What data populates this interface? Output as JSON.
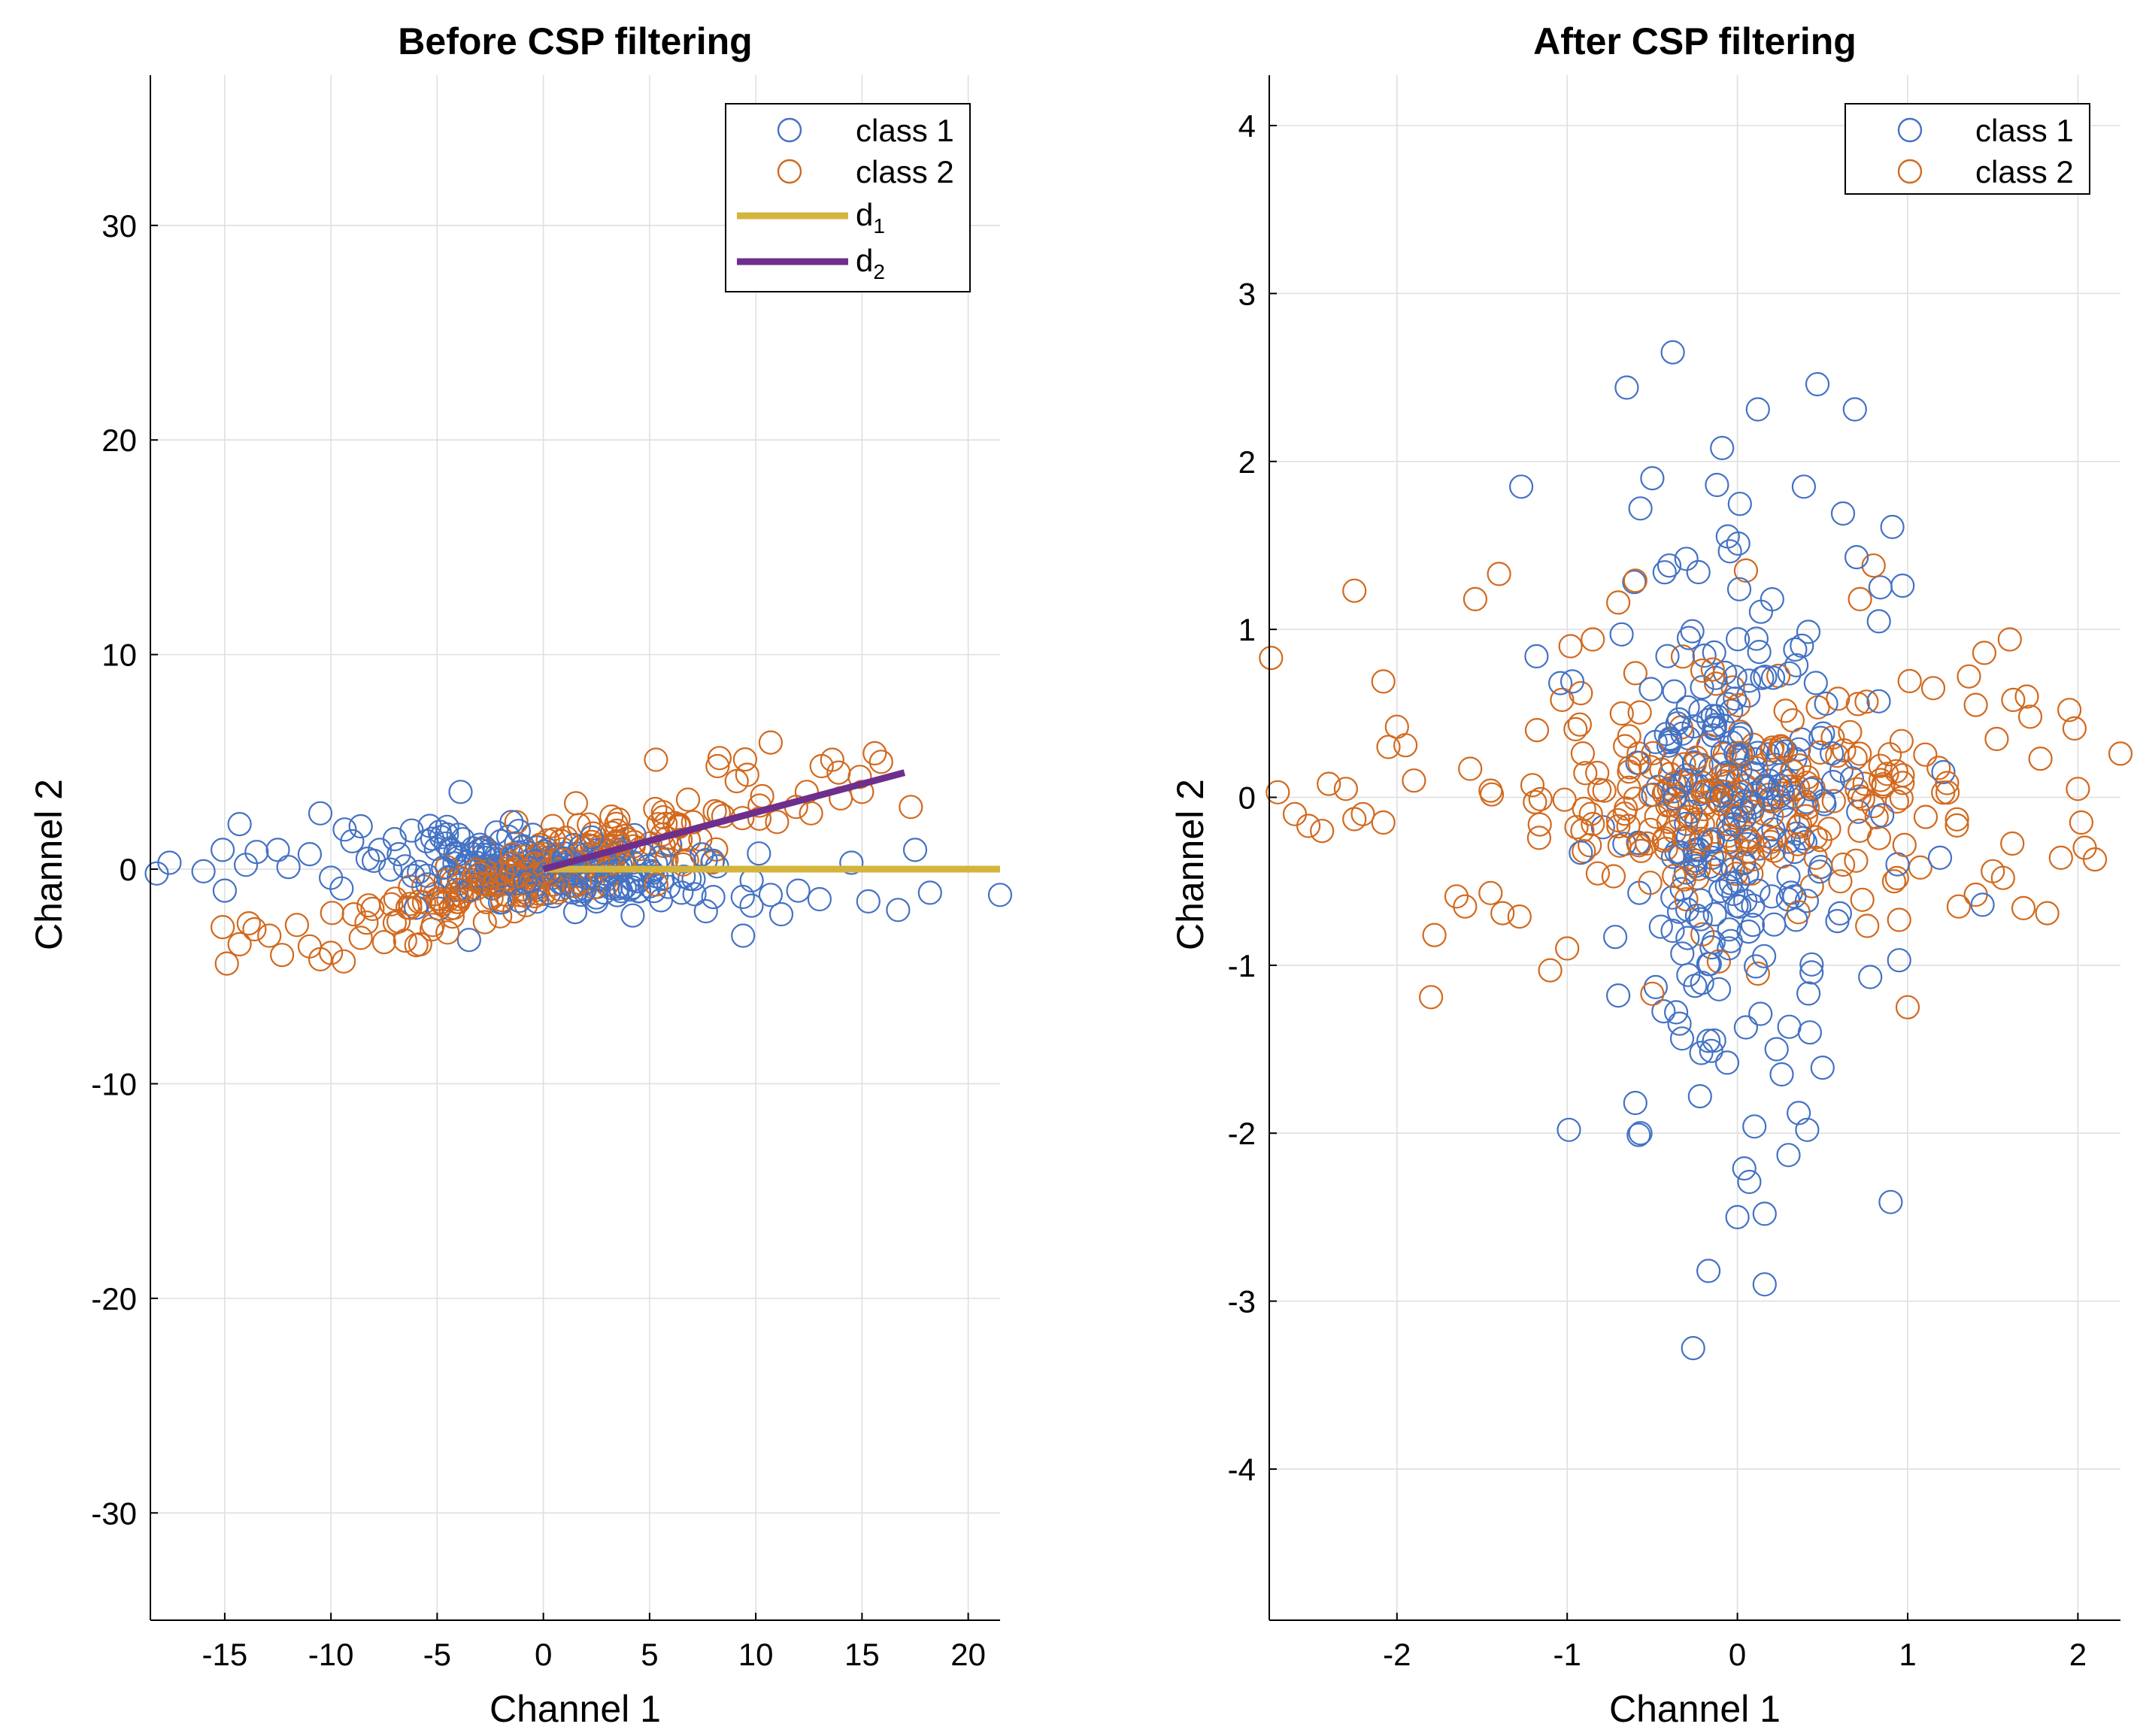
{
  "colors": {
    "class1": "#4472C4",
    "class2": "#D2691E",
    "d1": "#D4B43C",
    "d2": "#6E2F8C",
    "grid": "#DFDFDF",
    "axis": "#000000"
  },
  "chart_data": [
    {
      "type": "scatter",
      "title": "Before CSP filtering",
      "xlabel": "Channel 1",
      "ylabel": "Channel 2",
      "xlim": [
        -18.5,
        21.5
      ],
      "ylim": [
        -35,
        37
      ],
      "xticks": [
        -15,
        -10,
        -5,
        0,
        5,
        10,
        15,
        20
      ],
      "yticks": [
        -30,
        -20,
        -10,
        0,
        10,
        20,
        30
      ],
      "grid": true,
      "legend_position": "top-right",
      "seed": 11,
      "series": [
        {
          "name": "class 1",
          "marker": "circle-open",
          "color_key": "class1",
          "points": [
            [
              -18.2,
              -0.2
            ],
            [
              -17.6,
              0.3
            ],
            [
              -15.1,
              0.9
            ],
            [
              -15.0,
              -1.0
            ],
            [
              -14.3,
              2.1
            ],
            [
              -14.0,
              0.2
            ],
            [
              -13.5,
              0.8
            ],
            [
              -12.5,
              0.9
            ],
            [
              -12.0,
              0.1
            ],
            [
              -11.0,
              0.7
            ],
            [
              -10.5,
              2.6
            ],
            [
              -10.0,
              -0.4
            ],
            [
              -9.0,
              1.3
            ],
            [
              -8.6,
              2.0
            ],
            [
              -7.7,
              0.9
            ],
            [
              -7.0,
              1.4
            ],
            [
              -6.2,
              1.8
            ],
            [
              -5.5,
              1.3
            ],
            [
              -4.0,
              1.6
            ],
            [
              -3.9,
              3.6
            ],
            [
              -3.0,
              0.9
            ],
            [
              -2.0,
              1.3
            ],
            [
              -1.5,
              2.2
            ],
            [
              -0.5,
              1.6
            ],
            [
              0.2,
              0.5
            ],
            [
              1.0,
              0.2
            ],
            [
              2.0,
              -0.4
            ],
            [
              3.5,
              -0.9
            ],
            [
              5.0,
              -0.8
            ],
            [
              6.5,
              -1.1
            ],
            [
              8.0,
              -1.3
            ],
            [
              9.4,
              -3.1
            ],
            [
              9.8,
              -1.7
            ],
            [
              10.7,
              -1.2
            ],
            [
              11.2,
              -2.1
            ],
            [
              12.0,
              -1.0
            ],
            [
              13.0,
              -1.4
            ],
            [
              14.5,
              0.3
            ],
            [
              15.3,
              -1.5
            ],
            [
              16.7,
              -1.9
            ],
            [
              17.5,
              0.9
            ],
            [
              18.2,
              -1.1
            ],
            [
              21.5,
              -1.2
            ],
            [
              -16.0,
              -0.1
            ],
            [
              -6.0,
              -1.8
            ],
            [
              -3.5,
              -3.3
            ],
            [
              -9.5,
              -0.9
            ],
            [
              1.5,
              -2.0
            ]
          ],
          "cloud": {
            "count": 200,
            "x_sd": 3.5,
            "slope": -0.06,
            "y_sd": 0.75
          }
        },
        {
          "name": "class 2",
          "marker": "circle-open",
          "color_key": "class2",
          "points": [
            [
              -15.1,
              -2.7
            ],
            [
              -14.9,
              -4.4
            ],
            [
              -14.3,
              -3.5
            ],
            [
              -13.6,
              -2.8
            ],
            [
              -12.9,
              -3.1
            ],
            [
              -12.3,
              -4.0
            ],
            [
              -11.6,
              -2.6
            ],
            [
              -11.0,
              -3.6
            ],
            [
              -10.5,
              -4.2
            ],
            [
              -10.0,
              -3.9
            ],
            [
              -9.4,
              -4.3
            ],
            [
              -8.6,
              -3.2
            ],
            [
              -7.5,
              -3.4
            ],
            [
              -7.0,
              -2.5
            ],
            [
              -5.8,
              -3.5
            ],
            [
              -5.2,
              -2.6
            ],
            [
              -4.2,
              -1.8
            ],
            [
              5.3,
              5.1
            ],
            [
              10.7,
              5.9
            ],
            [
              9.1,
              4.1
            ],
            [
              8.2,
              4.8
            ],
            [
              13.1,
              4.8
            ],
            [
              13.6,
              5.1
            ],
            [
              13.9,
              4.5
            ],
            [
              14.9,
              4.3
            ],
            [
              15.6,
              5.4
            ],
            [
              15.9,
              5.0
            ],
            [
              17.3,
              2.9
            ],
            [
              12.4,
              3.6
            ],
            [
              11.9,
              2.9
            ],
            [
              10.3,
              3.4
            ],
            [
              9.6,
              4.4
            ],
            [
              11.0,
              2.2
            ],
            [
              12.6,
              2.6
            ],
            [
              14.0,
              3.3
            ],
            [
              15.0,
              3.6
            ]
          ],
          "cloud": {
            "count": 210,
            "x_sd": 4.0,
            "slope": 0.27,
            "y_sd": 0.85
          }
        },
        {
          "name": "d₁",
          "label_main": "d",
          "label_sub": "1",
          "marker": "line",
          "color_key": "d1",
          "x": [
            0,
            21.5
          ],
          "y": [
            0,
            0
          ]
        },
        {
          "name": "d₂",
          "label_main": "d",
          "label_sub": "2",
          "marker": "line",
          "color_key": "d2",
          "x": [
            0,
            17.0
          ],
          "y": [
            0,
            4.5
          ]
        }
      ]
    },
    {
      "type": "scatter",
      "title": "After CSP filtering",
      "xlabel": "Channel 1",
      "ylabel": "Channel 2",
      "xlim": [
        -2.75,
        2.25
      ],
      "ylim": [
        -4.9,
        4.3
      ],
      "xticks": [
        -2,
        -1,
        0,
        1,
        2
      ],
      "yticks": [
        -4,
        -3,
        -2,
        -1,
        0,
        1,
        2,
        3,
        4
      ],
      "grid": true,
      "legend_position": "top-right",
      "seed": 29,
      "series": [
        {
          "name": "class 1",
          "marker": "circle-open",
          "color_key": "class1",
          "points": [
            [
              -0.38,
              2.65
            ],
            [
              -0.65,
              2.44
            ],
            [
              0.12,
              2.31
            ],
            [
              0.47,
              2.46
            ],
            [
              0.69,
              2.31
            ],
            [
              -0.09,
              2.08
            ],
            [
              -1.27,
              1.85
            ],
            [
              -0.12,
              1.86
            ],
            [
              0.39,
              1.85
            ],
            [
              -0.5,
              1.9
            ],
            [
              -0.57,
              1.72
            ],
            [
              0.91,
              1.61
            ],
            [
              0.62,
              1.69
            ],
            [
              -0.68,
              0.97
            ],
            [
              -0.3,
              1.42
            ],
            [
              -0.4,
              1.38
            ],
            [
              0.7,
              1.43
            ],
            [
              0.84,
              1.25
            ],
            [
              0.97,
              1.26
            ],
            [
              -1.18,
              0.84
            ],
            [
              -1.04,
              0.68
            ],
            [
              -0.97,
              0.69
            ],
            [
              -0.26,
              -3.28
            ],
            [
              -0.17,
              -2.82
            ],
            [
              0.16,
              -2.9
            ],
            [
              0.0,
              -2.5
            ],
            [
              0.16,
              -2.48
            ],
            [
              0.07,
              -2.29
            ],
            [
              0.04,
              -2.21
            ],
            [
              -0.99,
              -1.98
            ],
            [
              -0.58,
              -2.01
            ],
            [
              -0.6,
              -1.82
            ],
            [
              -0.22,
              -1.78
            ],
            [
              0.1,
              -1.96
            ],
            [
              0.3,
              -2.13
            ],
            [
              0.36,
              -1.88
            ],
            [
              0.41,
              -1.98
            ],
            [
              0.9,
              -2.41
            ],
            [
              0.26,
              -1.65
            ],
            [
              0.23,
              -1.5
            ],
            [
              0.5,
              -1.61
            ],
            [
              0.05,
              -1.37
            ],
            [
              -0.06,
              -1.58
            ],
            [
              -0.17,
              -1.45
            ],
            [
              1.44,
              -0.64
            ],
            [
              1.19,
              -0.36
            ],
            [
              1.21,
              0.15
            ],
            [
              0.95,
              -0.97
            ],
            [
              -0.7,
              -1.18
            ],
            [
              -0.36,
              -1.28
            ],
            [
              -0.92,
              -0.33
            ],
            [
              0.78,
              -1.07
            ],
            [
              -0.48,
              -1.13
            ]
          ],
          "cloud": {
            "count": 240,
            "x_sd": 0.32,
            "slope": 0.0,
            "y_sd": 0.6
          }
        },
        {
          "name": "class 2",
          "marker": "circle-open",
          "color_key": "class2",
          "points": [
            [
              -2.74,
              0.83
            ],
            [
              -2.7,
              0.03
            ],
            [
              -2.6,
              -0.1
            ],
            [
              -2.52,
              -0.17
            ],
            [
              -2.44,
              -0.2
            ],
            [
              -2.4,
              0.08
            ],
            [
              -2.3,
              0.05
            ],
            [
              -2.25,
              -0.13
            ],
            [
              -2.2,
              -0.1
            ],
            [
              -2.25,
              1.23
            ],
            [
              -2.08,
              0.69
            ],
            [
              -2.05,
              0.3
            ],
            [
              -2.0,
              0.42
            ],
            [
              -1.95,
              0.31
            ],
            [
              -2.08,
              -0.15
            ],
            [
              -1.9,
              0.1
            ],
            [
              -1.78,
              -0.82
            ],
            [
              -1.8,
              -1.19
            ],
            [
              -1.65,
              -0.59
            ],
            [
              -1.6,
              -0.65
            ],
            [
              -1.57,
              0.17
            ],
            [
              -1.54,
              1.18
            ],
            [
              -1.4,
              1.33
            ],
            [
              -1.45,
              -0.57
            ],
            [
              -1.38,
              -0.69
            ],
            [
              -1.28,
              -0.71
            ],
            [
              -1.1,
              -1.03
            ],
            [
              -1.0,
              -0.9
            ],
            [
              -1.03,
              0.58
            ],
            [
              -0.98,
              0.9
            ],
            [
              -0.92,
              0.62
            ],
            [
              -0.85,
              0.94
            ],
            [
              -0.7,
              1.16
            ],
            [
              -0.6,
              1.29
            ],
            [
              0.05,
              1.35
            ],
            [
              0.72,
              1.18
            ],
            [
              0.8,
              1.38
            ],
            [
              1.0,
              -1.25
            ],
            [
              0.92,
              -0.5
            ],
            [
              1.15,
              0.65
            ],
            [
              1.36,
              0.72
            ],
            [
              1.4,
              0.55
            ],
            [
              1.45,
              0.86
            ],
            [
              1.6,
              0.94
            ],
            [
              1.62,
              0.58
            ],
            [
              1.7,
              0.6
            ],
            [
              1.72,
              0.48
            ],
            [
              1.78,
              0.23
            ],
            [
              1.95,
              0.52
            ],
            [
              1.98,
              0.41
            ],
            [
              2.0,
              0.05
            ],
            [
              2.02,
              -0.15
            ],
            [
              2.04,
              -0.3
            ],
            [
              2.1,
              -0.37
            ],
            [
              2.25,
              0.26
            ],
            [
              1.9,
              -0.36
            ],
            [
              1.82,
              -0.69
            ],
            [
              1.5,
              -0.44
            ],
            [
              1.56,
              -0.48
            ],
            [
              1.68,
              -0.66
            ],
            [
              1.4,
              -0.58
            ],
            [
              1.3,
              -0.65
            ],
            [
              0.95,
              -0.73
            ],
            [
              0.12,
              -1.05
            ],
            [
              -0.5,
              -1.17
            ],
            [
              -1.45,
              0.04
            ]
          ],
          "cloud": {
            "count": 230,
            "x_sd": 0.6,
            "slope": 0.0,
            "y_sd": 0.32
          }
        }
      ]
    }
  ],
  "panels_text": {
    "left_title": "Before CSP filtering",
    "right_title": "After CSP filtering",
    "left_xlabel": "Channel 1",
    "left_ylabel": "Channel 2",
    "right_xlabel": "Channel 1",
    "right_ylabel": "Channel 2",
    "legend_class1": "class 1",
    "legend_class2": "class 2",
    "legend_d1_main": "d",
    "legend_d1_sub": "1",
    "legend_d2_main": "d",
    "legend_d2_sub": "2"
  }
}
